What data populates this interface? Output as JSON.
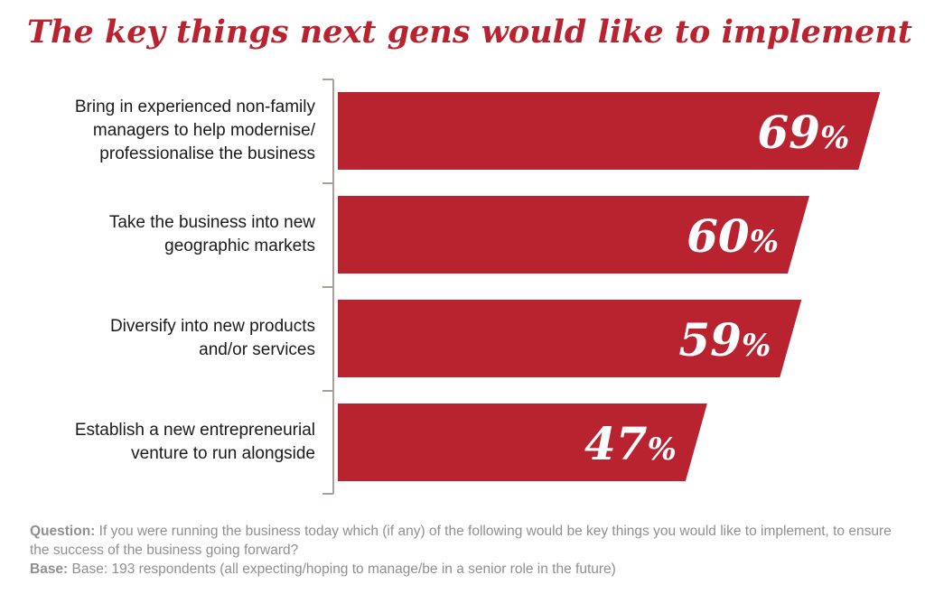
{
  "title": "The key things next gens would like to implement",
  "chart_data": {
    "type": "bar",
    "orientation": "horizontal",
    "categories": [
      "Bring in experienced non-family managers to help modernise/ professionalise the business",
      "Take the business into new geographic markets",
      "Diversify into new products and/or services",
      "Establish a new entrepreneurial venture to run alongside"
    ],
    "category_lines": [
      [
        "Bring in experienced non-family",
        "managers to help modernise/",
        "professionalise the business"
      ],
      [
        "Take the business into new",
        "geographic markets"
      ],
      [
        "Diversify into new products",
        "and/or services"
      ],
      [
        "Establish a new entrepreneurial",
        "venture to run alongside"
      ]
    ],
    "values": [
      69,
      60,
      59,
      47
    ],
    "value_labels": [
      "69",
      "60",
      "59",
      "47"
    ],
    "unit_symbol": "%",
    "xlim": [
      0,
      100
    ],
    "bar_color": "#b8232f",
    "bracket_color": "#a89f96",
    "grid": false,
    "legend": "none"
  },
  "footnote": {
    "question_label": "Question:",
    "question_text": " If you were running the business today which (if any) of the following would be key things you would like to implement, to ensure the success of the business going forward?",
    "base_label": "Base:",
    "base_text": " Base: 193 respondents (all expecting/hoping to manage/be in a senior role in the future)"
  }
}
